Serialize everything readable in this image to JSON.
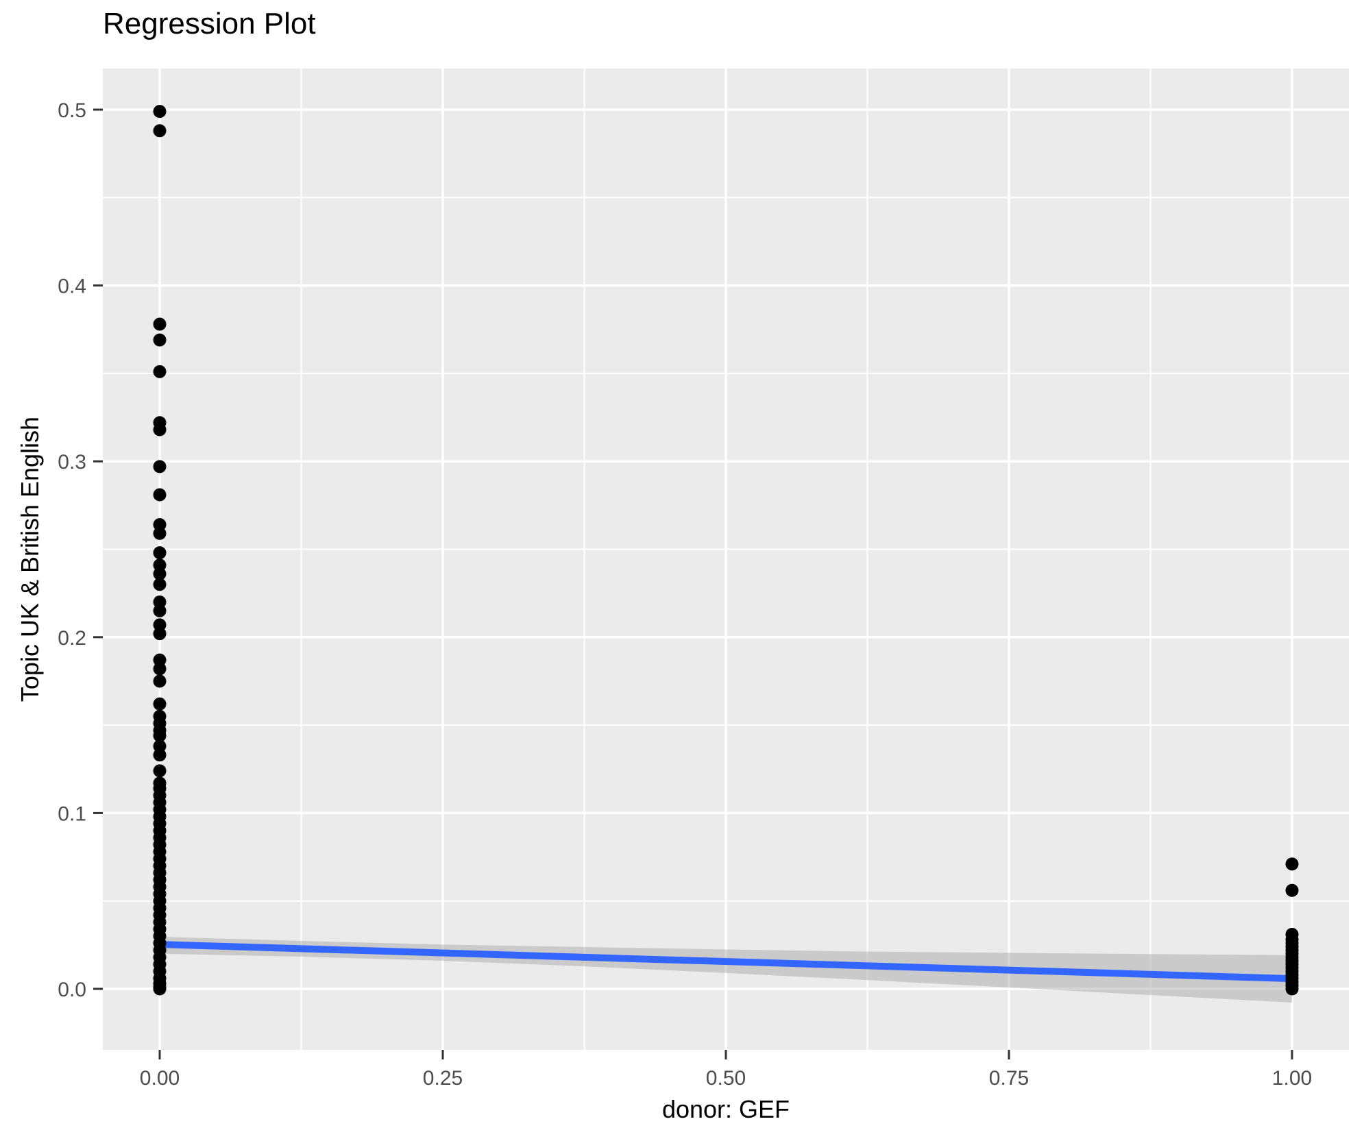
{
  "chart_data": {
    "type": "scatter",
    "title": "Regression Plot",
    "xlabel": "donor: GEF",
    "ylabel": "Topic UK & British English",
    "xlim": [
      -0.05,
      1.05
    ],
    "ylim": [
      -0.0347,
      0.5234
    ],
    "grid": "major-and-minor",
    "legend": "none",
    "x_ticks": [
      {
        "value": 0.0,
        "label": "0.00"
      },
      {
        "value": 0.25,
        "label": "0.25"
      },
      {
        "value": 0.5,
        "label": "0.50"
      },
      {
        "value": 0.75,
        "label": "0.75"
      },
      {
        "value": 1.0,
        "label": "1.00"
      }
    ],
    "y_ticks": [
      {
        "value": 0.0,
        "label": "0.0"
      },
      {
        "value": 0.1,
        "label": "0.1"
      },
      {
        "value": 0.2,
        "label": "0.2"
      },
      {
        "value": 0.3,
        "label": "0.3"
      },
      {
        "value": 0.4,
        "label": "0.4"
      },
      {
        "value": 0.5,
        "label": "0.5"
      }
    ],
    "x_minor_gridlines": [
      0.125,
      0.375,
      0.625,
      0.875
    ],
    "y_minor_gridlines": [
      0.05,
      0.15,
      0.25,
      0.35,
      0.45
    ],
    "series": [
      {
        "name": "donor GEF = 0",
        "x": 0,
        "y": [
          0.499,
          0.488,
          0.378,
          0.369,
          0.351,
          0.322,
          0.318,
          0.297,
          0.281,
          0.264,
          0.259,
          0.248,
          0.241,
          0.236,
          0.23,
          0.22,
          0.215,
          0.207,
          0.202,
          0.187,
          0.182,
          0.175,
          0.162,
          0.155,
          0.151,
          0.147,
          0.144,
          0.138,
          0.133,
          0.124,
          0.117,
          0.114,
          0.11,
          0.106,
          0.102,
          0.098,
          0.094,
          0.09,
          0.086,
          0.082,
          0.078,
          0.074,
          0.07,
          0.066,
          0.062,
          0.058,
          0.054,
          0.05,
          0.046,
          0.042,
          0.038,
          0.034,
          0.03,
          0.026,
          0.022,
          0.018,
          0.014,
          0.01,
          0.006,
          0.003,
          0.001,
          0.0
        ]
      },
      {
        "name": "donor GEF = 1",
        "x": 1,
        "y": [
          0.071,
          0.056,
          0.031,
          0.028,
          0.026,
          0.024,
          0.022,
          0.02,
          0.018,
          0.016,
          0.014,
          0.012,
          0.01,
          0.008,
          0.006,
          0.004,
          0.002,
          0.0
        ]
      }
    ],
    "regression_line": {
      "x": [
        0,
        1
      ],
      "y": [
        0.0253,
        0.0058
      ]
    },
    "confidence_band": [
      {
        "x": 0.0,
        "lo": 0.02,
        "hi": 0.0296
      },
      {
        "x": 0.125,
        "lo": 0.0183,
        "hi": 0.0273
      },
      {
        "x": 0.25,
        "lo": 0.016,
        "hi": 0.0252
      },
      {
        "x": 0.375,
        "lo": 0.0128,
        "hi": 0.0238
      },
      {
        "x": 0.5,
        "lo": 0.009,
        "hi": 0.0224
      },
      {
        "x": 0.625,
        "lo": 0.005,
        "hi": 0.0212
      },
      {
        "x": 0.75,
        "lo": 0.0008,
        "hi": 0.0205
      },
      {
        "x": 0.875,
        "lo": -0.0035,
        "hi": 0.0198
      },
      {
        "x": 1.0,
        "lo": -0.0078,
        "hi": 0.0192
      }
    ],
    "colors": {
      "panel_background": "#EBEBEB",
      "gridline": "#FFFFFF",
      "point": "#000000",
      "regression_line": "#3366FF",
      "confidence_band": "rgba(153,153,153,0.4)",
      "tick_label": "#4D4D4D",
      "tick_mark": "#333333",
      "title": "#000000"
    }
  }
}
